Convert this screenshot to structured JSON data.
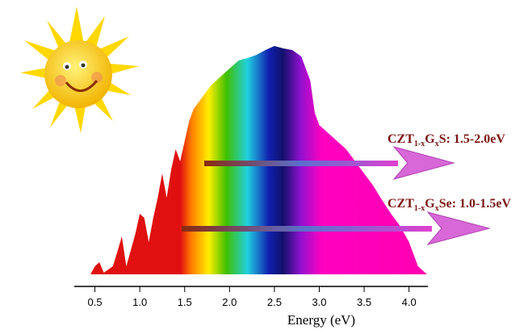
{
  "chart_data": {
    "type": "area",
    "x_label": "Energy (eV)",
    "x": [
      0.45,
      0.5,
      0.55,
      0.6,
      0.7,
      0.75,
      0.8,
      0.85,
      0.9,
      0.95,
      1.0,
      1.05,
      1.1,
      1.15,
      1.2,
      1.25,
      1.3,
      1.35,
      1.4,
      1.45,
      1.5,
      1.55,
      1.6,
      1.7,
      1.8,
      1.9,
      2.0,
      2.1,
      2.2,
      2.3,
      2.4,
      2.5,
      2.6,
      2.7,
      2.8,
      2.9,
      2.95,
      3.0,
      3.1,
      3.2,
      3.3,
      3.4,
      3.5,
      3.6,
      3.7,
      3.8,
      3.9,
      4.0,
      4.1,
      4.2
    ],
    "values": [
      0,
      10,
      15,
      2,
      10,
      28,
      47,
      10,
      30,
      50,
      75,
      70,
      40,
      70,
      95,
      125,
      95,
      130,
      155,
      140,
      165,
      190,
      205,
      220,
      235,
      245,
      255,
      265,
      268,
      272,
      278,
      283,
      280,
      278,
      270,
      240,
      200,
      185,
      175,
      165,
      155,
      140,
      125,
      110,
      92,
      75,
      60,
      40,
      10,
      0
    ],
    "xlim": [
      0.27,
      4.21
    ],
    "xticks": [
      {
        "value": 0.5,
        "label": "0.5"
      },
      {
        "value": 1,
        "label": "1.0"
      },
      {
        "value": 1.5,
        "label": "1.5"
      },
      {
        "value": 2,
        "label": "2.0"
      },
      {
        "value": 2.5,
        "label": "2.5"
      },
      {
        "value": 3,
        "label": "3.0"
      },
      {
        "value": 3.5,
        "label": "3.5"
      },
      {
        "value": 4,
        "label": "4.0"
      }
    ],
    "annotations": [
      {
        "parts": [
          "CZT",
          "1-x",
          "G",
          "x",
          "S: 1.5-2.0eV"
        ]
      },
      {
        "parts": [
          "CZT",
          "1-x",
          "G",
          "x",
          "Se: 1.0-1.5eV"
        ]
      }
    ]
  }
}
